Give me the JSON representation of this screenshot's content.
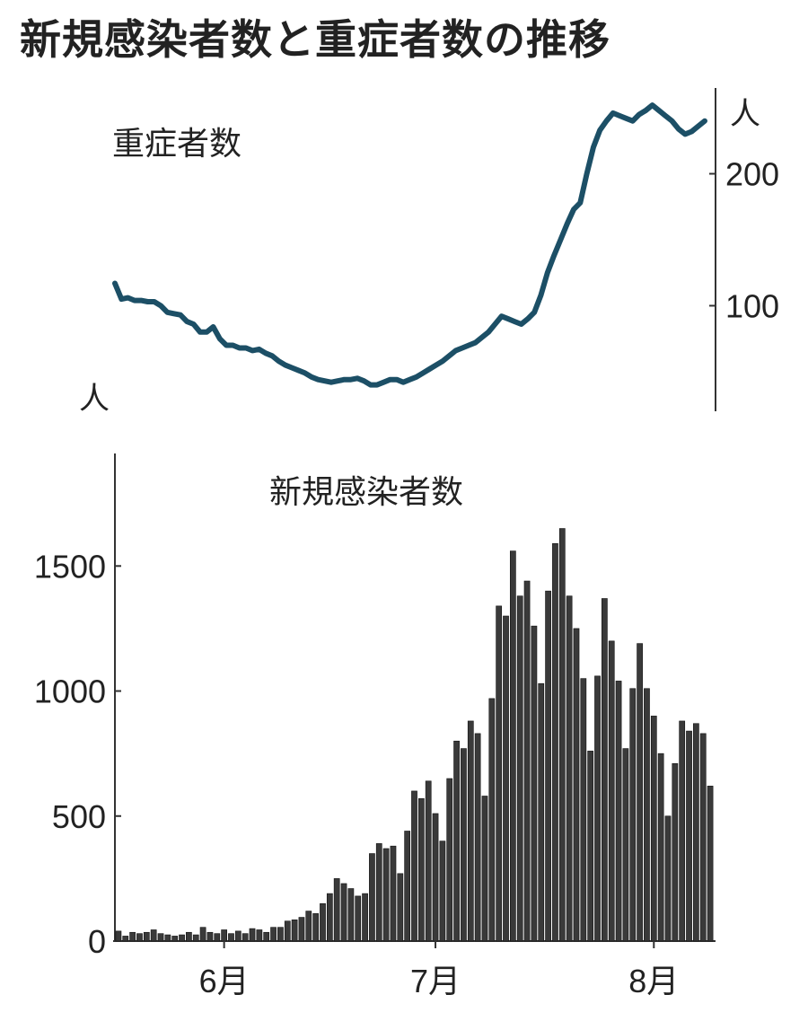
{
  "title": "新規感染者数と重症者数の推移",
  "chart_data": [
    {
      "type": "line",
      "title": "重症者数",
      "y_unit": "人",
      "color": "#1c4f66",
      "y_ticks": [
        100,
        200
      ],
      "y_tick_labels": [
        "100",
        "200"
      ],
      "ylim": [
        20,
        265
      ],
      "values": [
        117,
        105,
        106,
        104,
        104,
        103,
        103,
        100,
        95,
        94,
        93,
        88,
        86,
        80,
        80,
        84,
        75,
        70,
        70,
        68,
        68,
        66,
        67,
        64,
        62,
        58,
        55,
        53,
        51,
        49,
        46,
        44,
        43,
        42,
        43,
        44,
        44,
        45,
        43,
        40,
        40,
        42,
        44,
        44,
        42,
        44,
        46,
        49,
        52,
        55,
        58,
        62,
        66,
        68,
        70,
        72,
        76,
        80,
        86,
        92,
        90,
        88,
        86,
        90,
        95,
        108,
        125,
        138,
        150,
        162,
        173,
        178,
        200,
        220,
        233,
        240,
        246,
        244,
        242,
        240,
        245,
        248,
        252,
        248,
        244,
        240,
        234,
        230,
        232,
        236,
        240
      ]
    },
    {
      "type": "bar",
      "title": "新規感染者数",
      "y_unit": "人",
      "color": "#3a3a3a",
      "y_ticks": [
        0,
        500,
        1000,
        1500
      ],
      "y_tick_labels": [
        "0",
        "500",
        "1000",
        "1500"
      ],
      "ylim": [
        0,
        1950
      ],
      "x_tick_labels": [
        "6月",
        "7月",
        "8月"
      ],
      "x_tick_positions": [
        15,
        45,
        76
      ],
      "values": [
        40,
        20,
        35,
        30,
        35,
        45,
        30,
        25,
        20,
        25,
        35,
        25,
        55,
        35,
        30,
        45,
        30,
        40,
        30,
        50,
        45,
        35,
        55,
        55,
        80,
        85,
        95,
        120,
        110,
        150,
        190,
        250,
        230,
        210,
        180,
        190,
        350,
        390,
        370,
        380,
        270,
        440,
        600,
        570,
        640,
        510,
        400,
        650,
        800,
        770,
        880,
        830,
        580,
        970,
        1340,
        1300,
        1560,
        1380,
        1440,
        1260,
        1030,
        1400,
        1590,
        1650,
        1380,
        1250,
        1050,
        760,
        1060,
        1370,
        1200,
        1040,
        770,
        1010,
        1190,
        1010,
        900,
        750,
        500,
        710,
        880,
        840,
        870,
        830,
        620
      ]
    }
  ]
}
